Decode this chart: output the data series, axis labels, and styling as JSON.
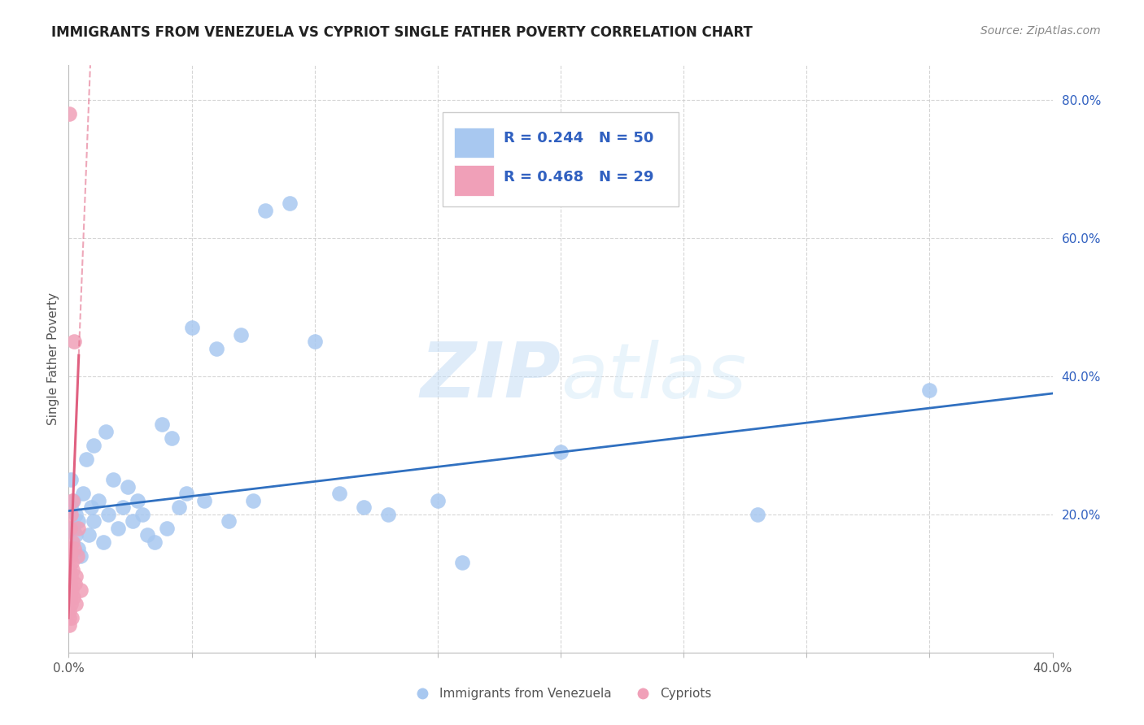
{
  "title": "IMMIGRANTS FROM VENEZUELA VS CYPRIOT SINGLE FATHER POVERTY CORRELATION CHART",
  "source": "Source: ZipAtlas.com",
  "ylabel": "Single Father Poverty",
  "xlim": [
    0.0,
    0.4
  ],
  "ylim": [
    0.0,
    0.85
  ],
  "blue_color": "#a8c8f0",
  "blue_line_color": "#3070c0",
  "pink_color": "#f0a0b8",
  "pink_line_color": "#e06080",
  "watermark_zip": "ZIP",
  "watermark_atlas": "atlas",
  "legend_color": "#3060c0",
  "venezuela_x": [
    0.001,
    0.001,
    0.002,
    0.002,
    0.003,
    0.003,
    0.004,
    0.004,
    0.005,
    0.006,
    0.007,
    0.008,
    0.009,
    0.01,
    0.01,
    0.012,
    0.014,
    0.015,
    0.016,
    0.018,
    0.02,
    0.022,
    0.024,
    0.026,
    0.028,
    0.03,
    0.032,
    0.035,
    0.038,
    0.04,
    0.042,
    0.045,
    0.048,
    0.05,
    0.055,
    0.06,
    0.065,
    0.07,
    0.075,
    0.08,
    0.09,
    0.1,
    0.11,
    0.12,
    0.13,
    0.15,
    0.16,
    0.2,
    0.28,
    0.35
  ],
  "venezuela_y": [
    0.21,
    0.25,
    0.18,
    0.22,
    0.17,
    0.2,
    0.15,
    0.19,
    0.14,
    0.23,
    0.28,
    0.17,
    0.21,
    0.19,
    0.3,
    0.22,
    0.16,
    0.32,
    0.2,
    0.25,
    0.18,
    0.21,
    0.24,
    0.19,
    0.22,
    0.2,
    0.17,
    0.16,
    0.33,
    0.18,
    0.31,
    0.21,
    0.23,
    0.47,
    0.22,
    0.44,
    0.19,
    0.46,
    0.22,
    0.64,
    0.65,
    0.45,
    0.23,
    0.21,
    0.2,
    0.22,
    0.13,
    0.29,
    0.2,
    0.38
  ],
  "cypriot_x": [
    0.0001,
    0.0001,
    0.0002,
    0.0002,
    0.0003,
    0.0003,
    0.0004,
    0.0005,
    0.0005,
    0.0006,
    0.0007,
    0.0008,
    0.0009,
    0.001,
    0.0011,
    0.0012,
    0.0013,
    0.0014,
    0.0015,
    0.0017,
    0.0019,
    0.0021,
    0.0023,
    0.0025,
    0.0028,
    0.003,
    0.0035,
    0.004,
    0.005
  ],
  "cypriot_y": [
    0.78,
    0.05,
    0.09,
    0.06,
    0.12,
    0.04,
    0.15,
    0.1,
    0.08,
    0.18,
    0.14,
    0.07,
    0.11,
    0.2,
    0.13,
    0.09,
    0.05,
    0.22,
    0.16,
    0.12,
    0.08,
    0.45,
    0.15,
    0.1,
    0.11,
    0.07,
    0.14,
    0.18,
    0.09
  ],
  "grid_color": "#cccccc",
  "background_color": "#ffffff"
}
